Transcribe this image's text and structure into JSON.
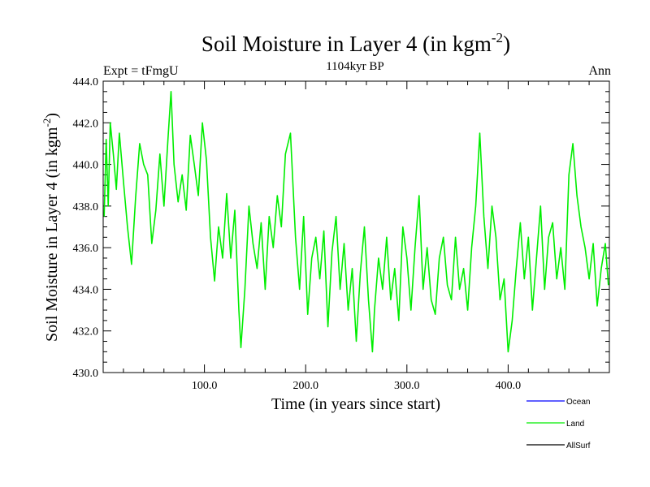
{
  "chart_data": {
    "type": "line",
    "title": "Soil Moisture in Layer 4 (in kgm",
    "title_sup": "-2",
    "title_suffix": ")",
    "subtitle": "1104kyr BP",
    "left_label": "Expt = tFmgU",
    "right_label": "Ann",
    "xlabel": "Time (in years since start)",
    "ylabel": "Soil Moisture in Layer 4 (in kgm",
    "ylabel_sup": "-2",
    "ylabel_suffix": ")",
    "xlim": [
      0,
      500
    ],
    "ylim": [
      430,
      444
    ],
    "xticks": [
      100,
      200,
      300,
      400
    ],
    "xtick_labels": [
      "100.0",
      "200.0",
      "300.0",
      "400.0"
    ],
    "yticks": [
      430,
      432,
      434,
      436,
      438,
      440,
      442,
      444
    ],
    "ytick_labels": [
      "430.0",
      "432.0",
      "434.0",
      "436.0",
      "438.0",
      "440.0",
      "442.0",
      "444.0"
    ],
    "legend": [
      {
        "name": "Ocean",
        "color": "#0000ff"
      },
      {
        "name": "Land",
        "color": "#00ee00"
      },
      {
        "name": "AllSurf",
        "color": "#000000"
      }
    ],
    "series": [
      {
        "name": "Land",
        "color": "#00ee00",
        "x": [
          1,
          3,
          5,
          7,
          10,
          13,
          16,
          20,
          24,
          28,
          32,
          36,
          40,
          44,
          48,
          52,
          56,
          60,
          64,
          67,
          70,
          74,
          78,
          82,
          86,
          90,
          94,
          98,
          102,
          106,
          110,
          114,
          118,
          122,
          126,
          130,
          134,
          136,
          140,
          144,
          148,
          152,
          156,
          160,
          164,
          168,
          172,
          176,
          180,
          185,
          190,
          194,
          198,
          202,
          206,
          210,
          214,
          218,
          222,
          226,
          230,
          234,
          238,
          242,
          246,
          250,
          254,
          258,
          262,
          266,
          268,
          272,
          276,
          280,
          284,
          288,
          292,
          296,
          300,
          304,
          308,
          312,
          316,
          320,
          324,
          328,
          332,
          336,
          340,
          344,
          348,
          352,
          356,
          360,
          364,
          368,
          372,
          376,
          380,
          384,
          388,
          392,
          396,
          400,
          404,
          408,
          412,
          416,
          420,
          424,
          428,
          432,
          436,
          440,
          444,
          448,
          452,
          456,
          460,
          464,
          468,
          472,
          476,
          480,
          484,
          488,
          492,
          496,
          499
        ],
        "values": [
          437.5,
          441.2,
          438.0,
          442.0,
          440.5,
          438.8,
          441.5,
          439.2,
          437.0,
          435.2,
          438.4,
          441.0,
          440.0,
          439.5,
          436.2,
          437.8,
          440.5,
          438.0,
          441.2,
          443.5,
          440.0,
          438.2,
          439.5,
          437.8,
          441.4,
          440.0,
          438.5,
          442.0,
          440.2,
          436.5,
          434.4,
          437.0,
          435.5,
          438.6,
          435.5,
          437.8,
          433.0,
          431.2,
          434.0,
          438.0,
          436.2,
          435.0,
          437.2,
          434.0,
          437.5,
          436.0,
          438.5,
          437.0,
          440.5,
          441.5,
          436.5,
          434.0,
          437.5,
          432.8,
          435.5,
          436.5,
          434.5,
          436.8,
          432.2,
          435.8,
          437.5,
          434.0,
          436.2,
          433.0,
          435.0,
          431.5,
          434.8,
          437.0,
          433.5,
          431.0,
          433.0,
          435.5,
          434.0,
          436.5,
          433.5,
          435.0,
          432.5,
          437.0,
          435.5,
          433.0,
          436.0,
          438.5,
          434.0,
          436.0,
          433.5,
          432.8,
          435.5,
          436.5,
          434.2,
          433.5,
          436.5,
          434.0,
          435.0,
          433.0,
          436.0,
          438.0,
          441.5,
          437.5,
          435.0,
          438.0,
          436.5,
          433.5,
          434.5,
          431.0,
          432.5,
          435.0,
          437.2,
          434.5,
          436.5,
          433.0,
          435.5,
          438.0,
          434.0,
          436.5,
          437.2,
          434.5,
          436.0,
          434.0,
          439.5,
          441.0,
          438.5,
          437.0,
          436.0,
          434.5,
          436.2,
          433.2,
          435.0,
          436.2,
          434.2
        ]
      }
    ]
  }
}
